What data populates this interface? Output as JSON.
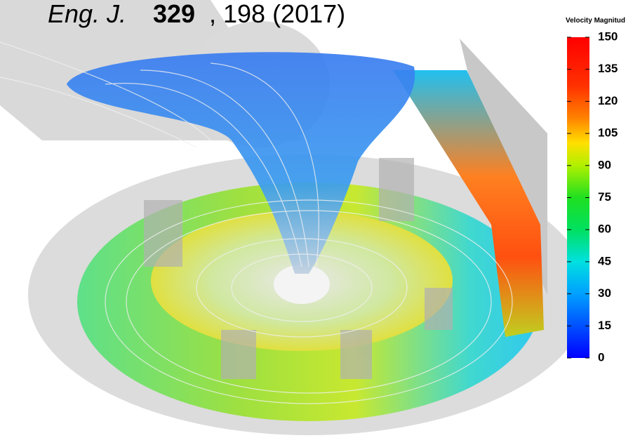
{
  "citation": {
    "journal": "Eng. J.",
    "volume": "329",
    "pages_year": ", 198 (2017)"
  },
  "colorbar": {
    "title": "Velocity Magnitud",
    "range": [
      0,
      150
    ],
    "ticks": [
      0,
      15,
      30,
      45,
      60,
      75,
      90,
      105,
      120,
      135,
      150
    ]
  }
}
